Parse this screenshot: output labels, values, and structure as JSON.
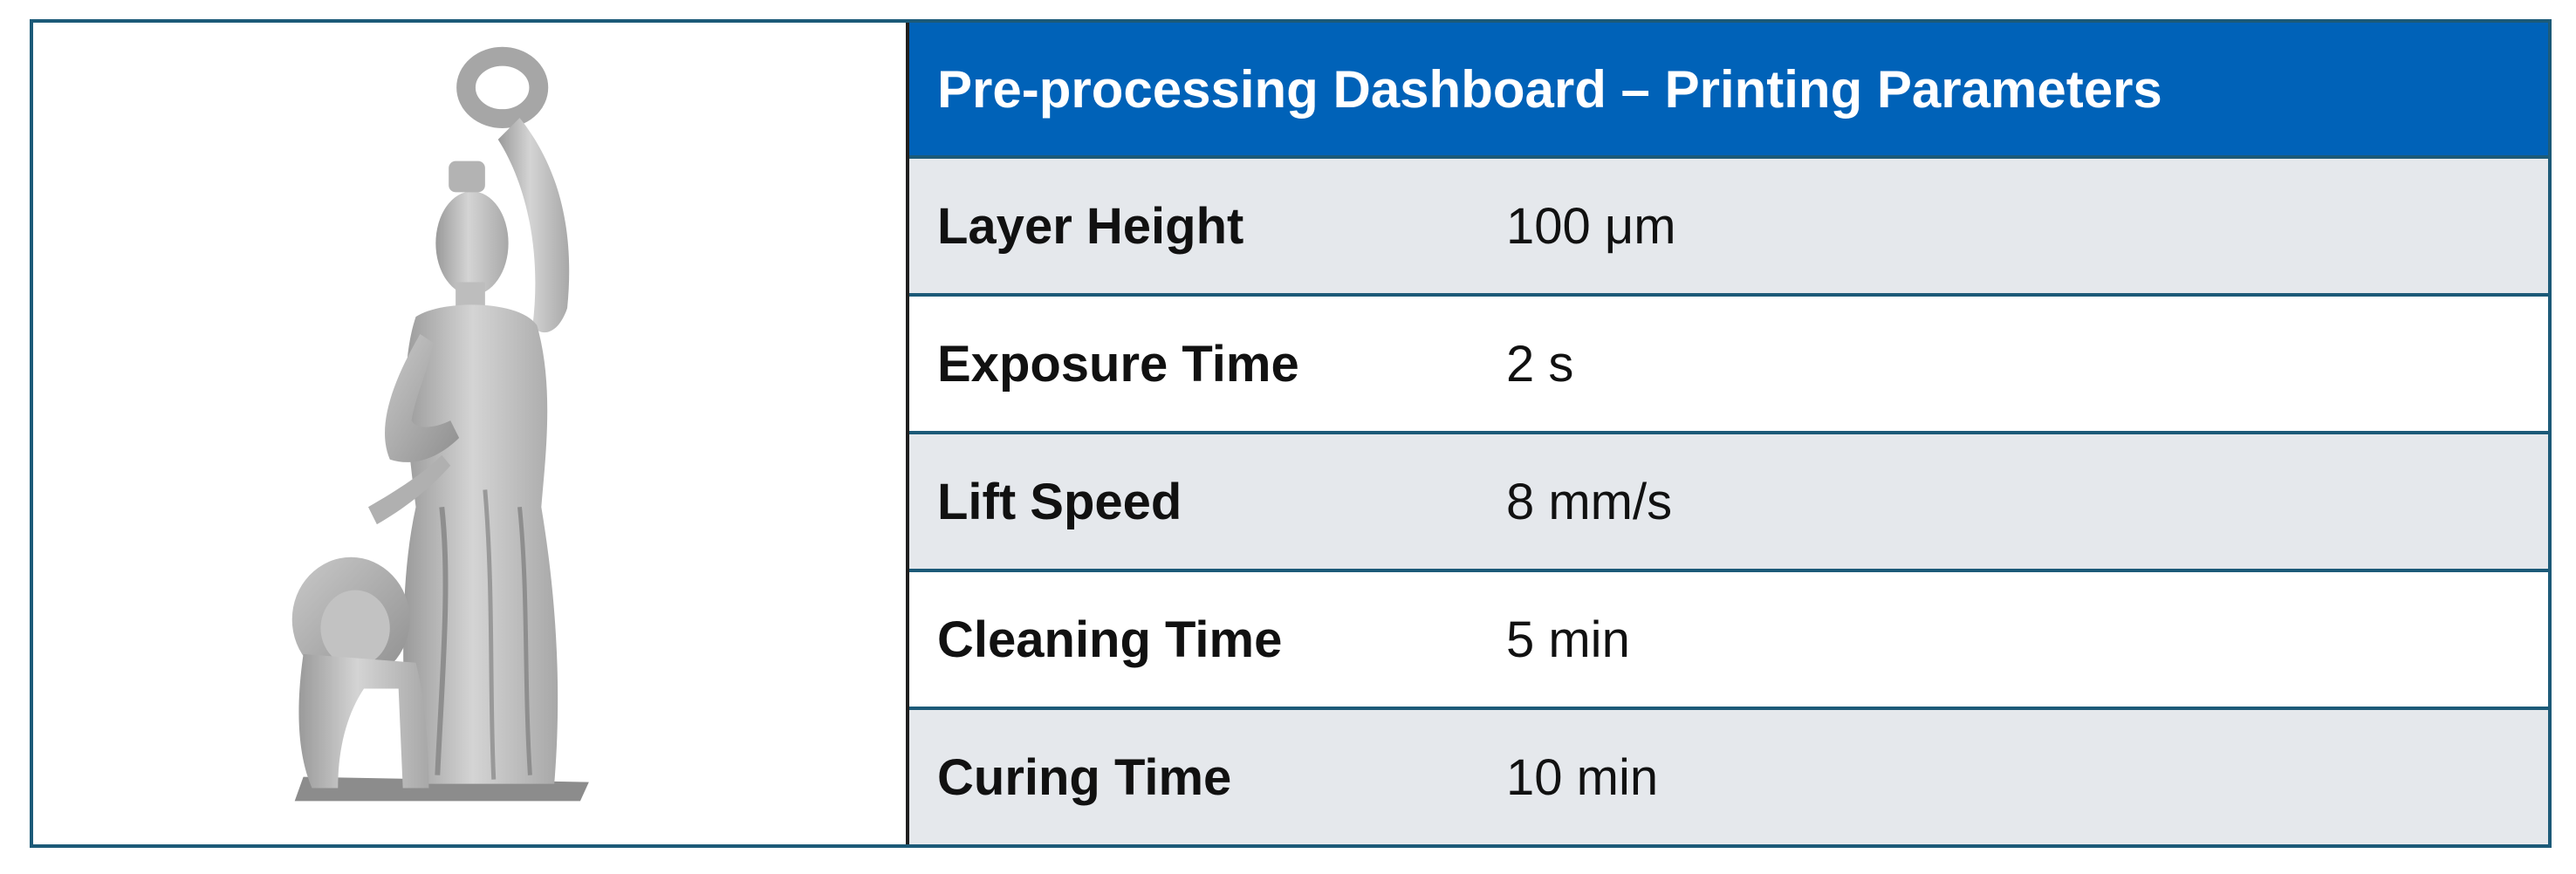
{
  "dashboard": {
    "title": "Pre-processing Dashboard – Printing Parameters",
    "accent_color": "#0062b8",
    "border_color": "#1c5a78",
    "row_shade_color": "#e5e8ec"
  },
  "preview": {
    "subject": "statue-model-render"
  },
  "parameters": [
    {
      "label": "Layer Height",
      "value": "100 μm"
    },
    {
      "label": "Exposure Time",
      "value": "2 s"
    },
    {
      "label": "Lift Speed",
      "value": "8 mm/s"
    },
    {
      "label": "Cleaning Time",
      "value": "5 min"
    },
    {
      "label": "Curing Time",
      "value": "10 min"
    }
  ]
}
